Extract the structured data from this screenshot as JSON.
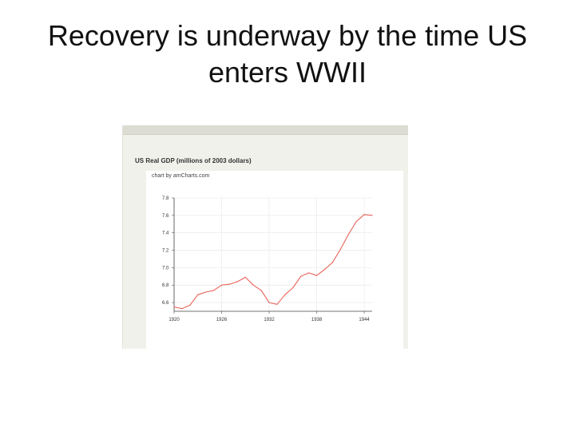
{
  "slide": {
    "title_line1": "Recovery is underway by the time US",
    "title_line2": "enters WWII"
  },
  "chart_data": {
    "type": "line",
    "title": "US Real GDP (millions of 2003 dollars)",
    "credit": "chart by amCharts.com",
    "xlabel": "",
    "ylabel": "",
    "x_ticks": [
      "1920",
      "1926",
      "1932",
      "1938",
      "1944"
    ],
    "y_ticks": [
      "6.6",
      "6.8",
      "7.0",
      "7.2",
      "7.4",
      "7.6",
      "7.8"
    ],
    "xlim": [
      1920,
      1945
    ],
    "ylim": [
      6.5,
      7.8
    ],
    "grid": true,
    "series": [
      {
        "color": "#e8635a",
        "x": [
          1920,
          1921,
          1922,
          1923,
          1924,
          1925,
          1926,
          1927,
          1928,
          1929,
          1930,
          1931,
          1932,
          1933,
          1934,
          1935,
          1936,
          1937,
          1938,
          1939,
          1940,
          1941,
          1942,
          1943,
          1944,
          1945
        ],
        "y": [
          6.55,
          6.53,
          6.57,
          6.69,
          6.72,
          6.74,
          6.8,
          6.81,
          6.84,
          6.89,
          6.8,
          6.74,
          6.6,
          6.58,
          6.69,
          6.77,
          6.9,
          6.94,
          6.91,
          6.98,
          7.06,
          7.21,
          7.38,
          7.53,
          7.61,
          7.6
        ]
      }
    ]
  }
}
